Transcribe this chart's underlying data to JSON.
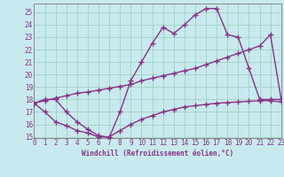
{
  "background_color": "#c8eaee",
  "line_color": "#883388",
  "grid_color": "#99ccbb",
  "xlim": [
    0,
    23
  ],
  "ylim": [
    14.9,
    25.7
  ],
  "xlabel": "Windchill (Refroidissement éolien,°C)",
  "yticks": [
    15,
    16,
    17,
    18,
    19,
    20,
    21,
    22,
    23,
    24,
    25
  ],
  "xticks": [
    0,
    1,
    2,
    3,
    4,
    5,
    6,
    7,
    8,
    9,
    10,
    11,
    12,
    13,
    14,
    15,
    16,
    17,
    18,
    19,
    20,
    21,
    22,
    23
  ],
  "line1_x": [
    0,
    1,
    2,
    3,
    4,
    5,
    6,
    7,
    8,
    9,
    10,
    11,
    12,
    13,
    14,
    15,
    16,
    17,
    18,
    19,
    20,
    21,
    22,
    23
  ],
  "line1_y": [
    17.7,
    18.0,
    18.0,
    17.0,
    16.2,
    15.6,
    15.1,
    14.95,
    17.0,
    19.5,
    21.0,
    22.5,
    23.8,
    23.3,
    24.0,
    24.8,
    25.3,
    25.3,
    23.2,
    23.0,
    20.5,
    18.0,
    18.0,
    18.0
  ],
  "line2_x": [
    0,
    1,
    2,
    3,
    4,
    5,
    6,
    7,
    8,
    9,
    10,
    11,
    12,
    13,
    14,
    15,
    16,
    17,
    18,
    19,
    20,
    21,
    22,
    23
  ],
  "line2_y": [
    17.7,
    17.9,
    18.1,
    18.3,
    18.5,
    18.6,
    18.75,
    18.9,
    19.05,
    19.2,
    19.5,
    19.7,
    19.9,
    20.1,
    20.3,
    20.5,
    20.8,
    21.1,
    21.4,
    21.7,
    22.0,
    22.3,
    23.2,
    18.0
  ],
  "line3_x": [
    0,
    1,
    2,
    3,
    4,
    5,
    6,
    7,
    8,
    9,
    10,
    11,
    12,
    13,
    14,
    15,
    16,
    17,
    18,
    19,
    20,
    21,
    22,
    23
  ],
  "line3_y": [
    17.7,
    17.0,
    16.2,
    15.9,
    15.5,
    15.3,
    15.0,
    15.0,
    15.5,
    16.0,
    16.4,
    16.7,
    17.0,
    17.2,
    17.4,
    17.5,
    17.6,
    17.7,
    17.75,
    17.8,
    17.85,
    17.9,
    17.9,
    17.8
  ],
  "marker": "+",
  "markersize": 4,
  "linewidth": 1.0,
  "tick_fontsize": 5.5,
  "xlabel_fontsize": 5.5
}
